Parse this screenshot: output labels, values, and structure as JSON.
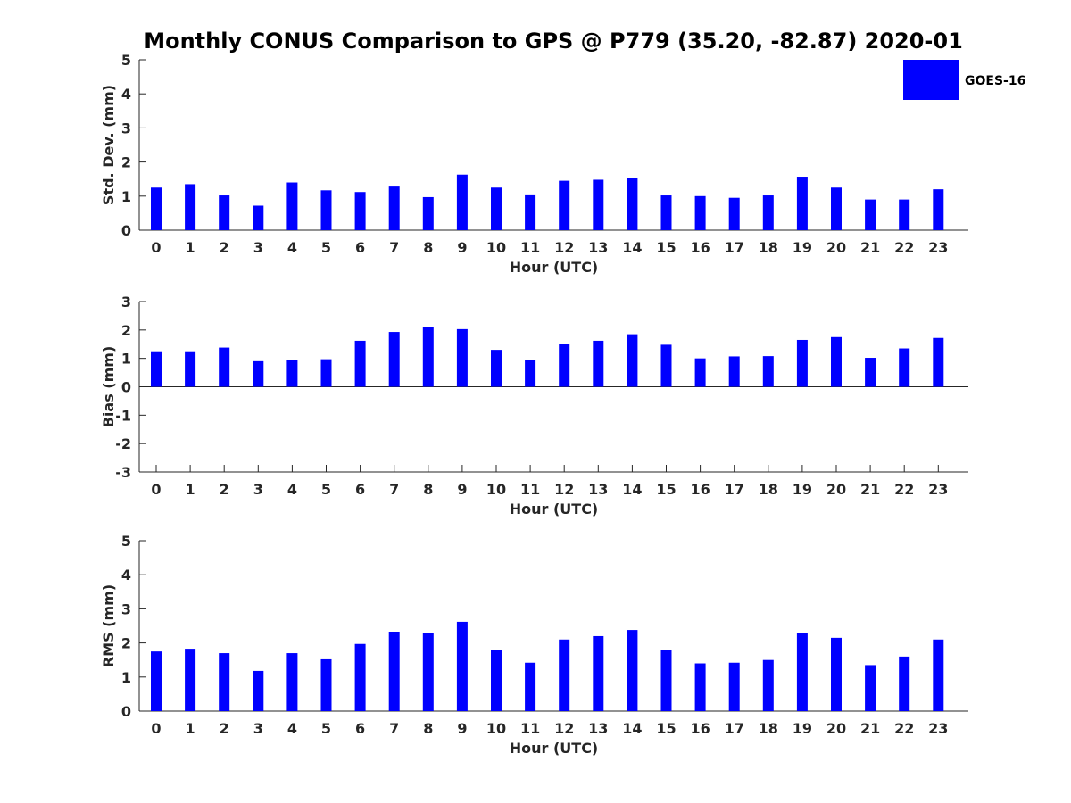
{
  "title": "Monthly CONUS Comparison to GPS @ P779 (35.20, -82.87) 2020-01",
  "legend": {
    "label": "GOES-16",
    "color": "#0000ff"
  },
  "chart_data": [
    {
      "type": "bar",
      "name": "std-dev",
      "xlabel": "Hour (UTC)",
      "ylabel": "Std. Dev. (mm)",
      "ylim": [
        0,
        5
      ],
      "yticks": [
        "0",
        "1",
        "2",
        "3",
        "4",
        "5"
      ],
      "categories": [
        "0",
        "1",
        "2",
        "3",
        "4",
        "5",
        "6",
        "7",
        "8",
        "9",
        "10",
        "11",
        "12",
        "13",
        "14",
        "15",
        "16",
        "17",
        "18",
        "19",
        "20",
        "21",
        "22",
        "23"
      ],
      "series": [
        {
          "name": "GOES-16",
          "values": [
            1.25,
            1.35,
            1.02,
            0.72,
            1.4,
            1.17,
            1.12,
            1.28,
            0.97,
            1.63,
            1.25,
            1.05,
            1.45,
            1.48,
            1.53,
            1.02,
            1.0,
            0.95,
            1.02,
            1.57,
            1.25,
            0.9,
            0.9,
            1.2
          ]
        }
      ],
      "color": "#0000ff"
    },
    {
      "type": "bar",
      "name": "bias",
      "xlabel": "Hour (UTC)",
      "ylabel": "Bias (mm)",
      "ylim": [
        -3,
        3
      ],
      "yticks": [
        "-3",
        "-2",
        "-1",
        "0",
        "1",
        "2",
        "3"
      ],
      "categories": [
        "0",
        "1",
        "2",
        "3",
        "4",
        "5",
        "6",
        "7",
        "8",
        "9",
        "10",
        "11",
        "12",
        "13",
        "14",
        "15",
        "16",
        "17",
        "18",
        "19",
        "20",
        "21",
        "22",
        "23"
      ],
      "series": [
        {
          "name": "GOES-16",
          "values": [
            1.25,
            1.25,
            1.38,
            0.9,
            0.95,
            0.97,
            1.62,
            1.93,
            2.1,
            2.03,
            1.3,
            0.95,
            1.5,
            1.62,
            1.85,
            1.48,
            1.0,
            1.07,
            1.08,
            1.65,
            1.75,
            1.02,
            1.35,
            1.72
          ]
        }
      ],
      "color": "#0000ff"
    },
    {
      "type": "bar",
      "name": "rms",
      "xlabel": "Hour (UTC)",
      "ylabel": "RMS (mm)",
      "ylim": [
        0,
        5
      ],
      "yticks": [
        "0",
        "1",
        "2",
        "3",
        "4",
        "5"
      ],
      "categories": [
        "0",
        "1",
        "2",
        "3",
        "4",
        "5",
        "6",
        "7",
        "8",
        "9",
        "10",
        "11",
        "12",
        "13",
        "14",
        "15",
        "16",
        "17",
        "18",
        "19",
        "20",
        "21",
        "22",
        "23"
      ],
      "series": [
        {
          "name": "GOES-16",
          "values": [
            1.75,
            1.83,
            1.7,
            1.18,
            1.7,
            1.52,
            1.97,
            2.33,
            2.3,
            2.62,
            1.8,
            1.42,
            2.1,
            2.2,
            2.38,
            1.78,
            1.4,
            1.42,
            1.5,
            2.28,
            2.15,
            1.35,
            1.6,
            2.1
          ]
        }
      ],
      "color": "#0000ff"
    }
  ]
}
